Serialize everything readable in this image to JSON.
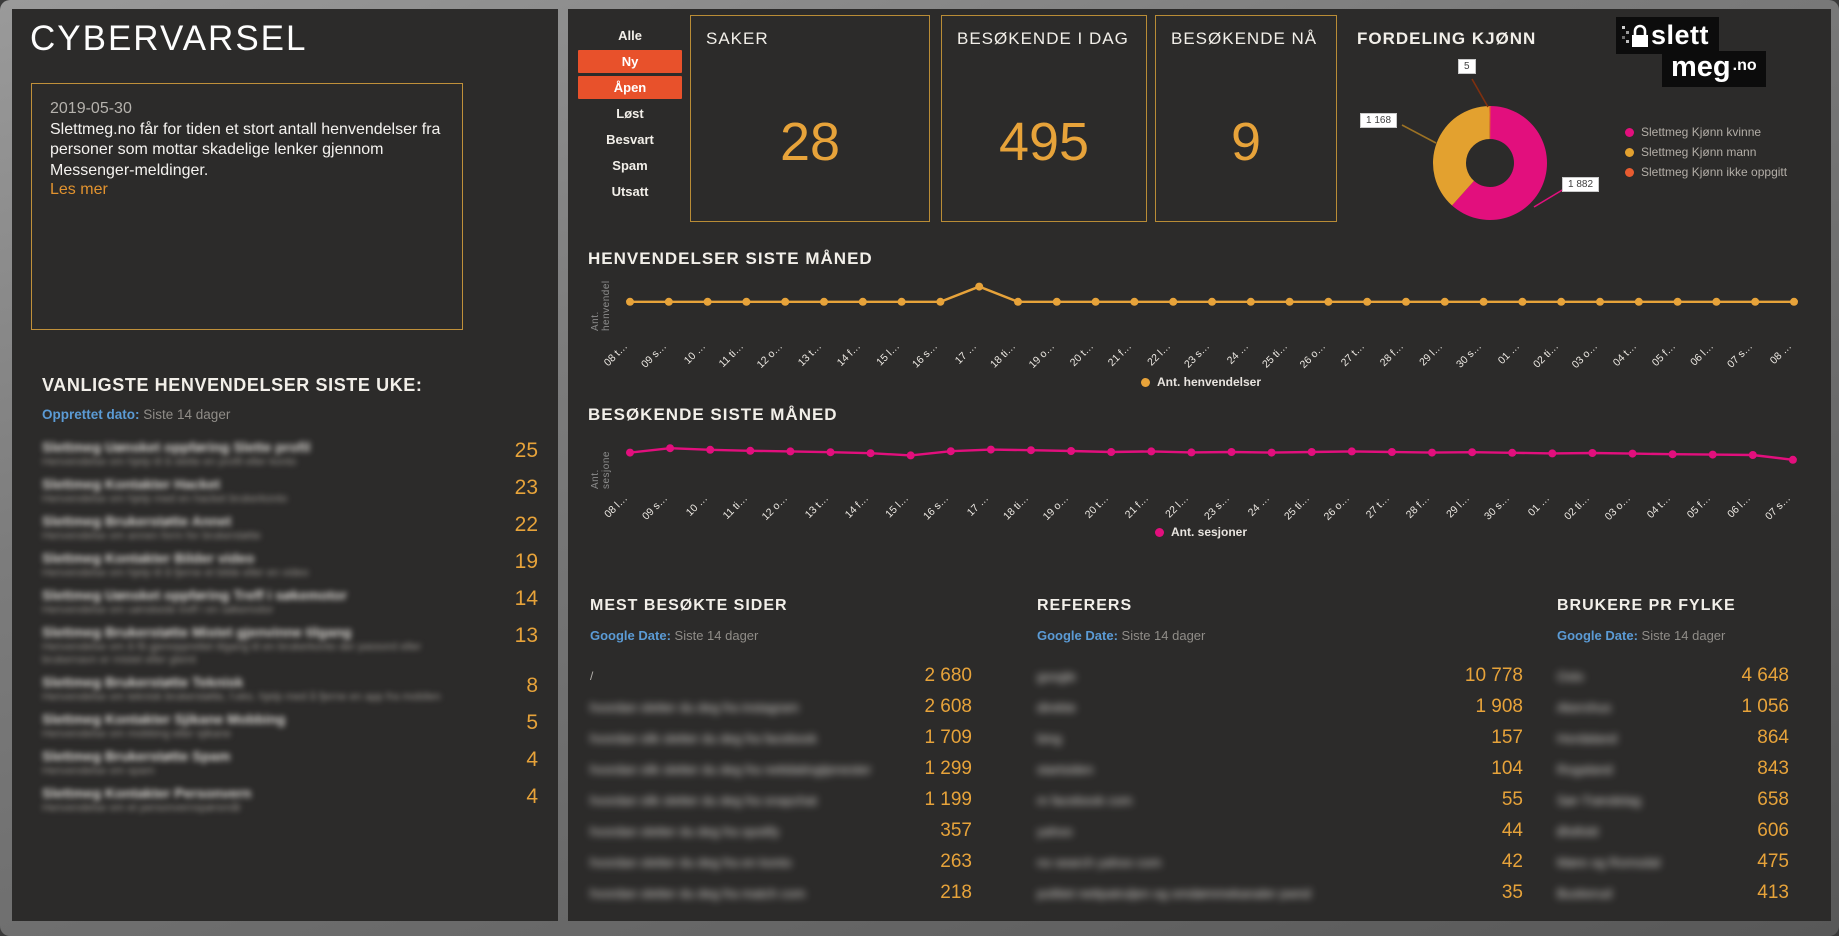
{
  "app": {
    "title": "CYBERVARSEL"
  },
  "alert": {
    "date": "2019-05-30",
    "text": "Slettmeg.no får for tiden et stort antall henvendelser fra personer som mottar skadelige lenker gjennom Messenger-meldinger.",
    "link_label": "Les mer"
  },
  "common_requests": {
    "heading": "VANLIGSTE HENVENDELSER SISTE UKE:",
    "filter_label": "Opprettet dato:",
    "filter_value": "Siste 14 dager",
    "note": "item titles and descriptions are blurred/redacted in the source image",
    "items": [
      {
        "title": "Slettmeg Uønsket oppføring Slette profil",
        "desc": "Henvendelse om hjelp til å slette en profil eller konto",
        "count": "25",
        "blurred": true
      },
      {
        "title": "Slettmeg Kontakter Hacket",
        "desc": "Henvendelse om hjelp med en hacket brukerkonto",
        "count": "23",
        "blurred": true
      },
      {
        "title": "Slettmeg Brukerstøtte Annet",
        "desc": "Henvendelse om annen form for brukerstøtte",
        "count": "22",
        "blurred": true
      },
      {
        "title": "Slettmeg Kontakter Bilder video",
        "desc": "Henvendelse om hjelp til å fjerne et bilde eller en video",
        "count": "19",
        "blurred": true
      },
      {
        "title": "Slettmeg Uønsket oppføring Treff i søkemotor",
        "desc": "Henvendelse om uønskede treff i en søkemotor",
        "count": "14",
        "blurred": true
      },
      {
        "title": "Slettmeg Brukerstøtte Mistet gjenvinne tilgang",
        "desc": "Henvendelse om å få gjenopprettet tilgang til en brukerkonto der passord eller brukernavn er mistet eller glemt",
        "count": "13",
        "blurred": true
      },
      {
        "title": "Slettmeg Brukerstøtte Teknisk",
        "desc": "Henvendelse om teknisk brukerstøtte, f.eks. hjelp med å fjerne en app fra mobilen",
        "count": "8",
        "blurred": true
      },
      {
        "title": "Slettmeg Kontakter Sjikane Mobbing",
        "desc": "Henvendelse om mobbing eller sjikane",
        "count": "5",
        "blurred": true
      },
      {
        "title": "Slettmeg Brukerstøtte Spam",
        "desc": "Henvendelse om spam",
        "count": "4",
        "blurred": true
      },
      {
        "title": "Slettmeg Kontakter Personvern",
        "desc": "Henvendelse om et personvernspørsmål",
        "count": "4",
        "blurred": true
      }
    ]
  },
  "filters": {
    "items": [
      {
        "label": "Alle",
        "active": false
      },
      {
        "label": "Ny",
        "active": true
      },
      {
        "label": "Åpen",
        "active": true
      },
      {
        "label": "Løst",
        "active": false
      },
      {
        "label": "Besvart",
        "active": false
      },
      {
        "label": "Spam",
        "active": false
      },
      {
        "label": "Utsatt",
        "active": false
      }
    ],
    "active_color": "#e8512b"
  },
  "kpis": [
    {
      "title": "SAKER",
      "value": "28"
    },
    {
      "title": "BESØKENDE I DAG",
      "value": "495"
    },
    {
      "title": "BESØKENDE NÅ",
      "value": "9"
    }
  ],
  "gender_chart": {
    "title": "FORDELING KJØNN",
    "segments": [
      {
        "label": "Slettmeg Kjønn kvinne",
        "value": 1882,
        "display": "1 882",
        "color": "#e20f7d"
      },
      {
        "label": "Slettmeg Kjønn mann",
        "value": 1168,
        "display": "1 168",
        "color": "#e3a12f"
      },
      {
        "label": "Slettmeg Kjønn ikke oppgitt",
        "value": 5,
        "display": "5",
        "color": "#e85b30"
      }
    ]
  },
  "logo": {
    "line1": "slett",
    "line2": "meg",
    "tld": ".no"
  },
  "chart_data": [
    {
      "id": "henvendelser",
      "type": "line",
      "title": "HENVENDELSER SISTE MÅNED",
      "ylabel": "Ant. henvendel",
      "legend": "Ant. henvendelser",
      "color": "#e7a33a",
      "grid": false,
      "legend_position": "bottom-center",
      "ylim": [
        0,
        5
      ],
      "x": [
        "08 t…",
        "09 s…",
        "10 …",
        "11 ti…",
        "12 o…",
        "13 t…",
        "14 f…",
        "15 l…",
        "16 s…",
        "17 …",
        "18 ti…",
        "19 o…",
        "20 t…",
        "21 f…",
        "22 l…",
        "23 s…",
        "24 …",
        "25 ti…",
        "26 o…",
        "27 t…",
        "28 f…",
        "29 l…",
        "30 s…",
        "01 …",
        "02 ti…",
        "03 o…",
        "04 t…",
        "05 f…",
        "06 l…",
        "07 s…",
        "08 …"
      ],
      "values": [
        2,
        2,
        2,
        2,
        2,
        2,
        2,
        2,
        2,
        4,
        2,
        2,
        2,
        2,
        2,
        2,
        2,
        2,
        2,
        2,
        2,
        2,
        2,
        2,
        2,
        2,
        2,
        2,
        2,
        2,
        2
      ]
    },
    {
      "id": "besokende",
      "type": "line",
      "title": "BESØKENDE SISTE MÅNED",
      "ylabel": "Ant. sesjone",
      "legend": "Ant. sesjoner",
      "color": "#e20f7d",
      "grid": false,
      "legend_position": "bottom-center",
      "ylim": [
        400,
        560
      ],
      "x": [
        "08 l…",
        "09 s…",
        "10 …",
        "11 ti…",
        "12 o…",
        "13 t…",
        "14 f…",
        "15 l…",
        "16 s…",
        "17 …",
        "18 ti…",
        "19 o…",
        "20 t…",
        "21 f…",
        "22 l…",
        "23 s…",
        "24 …",
        "25 ti…",
        "26 o…",
        "27 t…",
        "28 f…",
        "29 l…",
        "30 s…",
        "01 …",
        "02 ti…",
        "03 o…",
        "04 t…",
        "05 f…",
        "06 l…",
        "07 s…"
      ],
      "values": [
        482,
        504,
        496,
        491,
        488,
        484,
        479,
        468,
        489,
        497,
        494,
        490,
        485,
        488,
        483,
        485,
        482,
        485,
        488,
        485,
        482,
        484,
        481,
        478,
        480,
        477,
        474,
        472,
        470,
        446
      ]
    },
    {
      "id": "kjonn",
      "type": "pie",
      "title": "FORDELING KJØNN",
      "labels": [
        "Slettmeg Kjønn kvinne",
        "Slettmeg Kjønn mann",
        "Slettmeg Kjønn ikke oppgitt"
      ],
      "values": [
        1882,
        1168,
        5
      ],
      "data_labels": [
        "1 882",
        "1 168",
        "5"
      ],
      "legend_position": "right"
    }
  ],
  "tables": [
    {
      "heading": "MEST BESØKTE SIDER",
      "filter_label": "Google Date:",
      "filter_value": "Siste 14 dager",
      "rows": [
        {
          "label": "/",
          "value": "2 680",
          "blurred": false
        },
        {
          "label": "hvordan sletter du deg fra instagram",
          "value": "2 608",
          "blurred": true
        },
        {
          "label": "hvordan slik sletter du deg fra facebook",
          "value": "1 709",
          "blurred": true
        },
        {
          "label": "hvordan slik sletter du deg fra nettdatingtjenester",
          "value": "1 299",
          "blurred": true
        },
        {
          "label": "hvordan slik sletter du deg fra snapchat",
          "value": "1 199",
          "blurred": true
        },
        {
          "label": "hvordan sletter du deg fra spotify",
          "value": "357",
          "blurred": true
        },
        {
          "label": "hvordan sletter du deg fra en konto",
          "value": "263",
          "blurred": true
        },
        {
          "label": "hvordan sletter du deg fra match com",
          "value": "218",
          "blurred": true
        }
      ]
    },
    {
      "heading": "REFERERS",
      "filter_label": "Google Date:",
      "filter_value": "Siste 14 dager",
      "rows": [
        {
          "label": "google",
          "value": "10 778",
          "blurred": true
        },
        {
          "label": "direkte",
          "value": "1 908",
          "blurred": true
        },
        {
          "label": "bing",
          "value": "157",
          "blurred": true
        },
        {
          "label": "startsiden",
          "value": "104",
          "blurred": true
        },
        {
          "label": "m facebook com",
          "value": "55",
          "blurred": true
        },
        {
          "label": "yahoo",
          "value": "44",
          "blurred": true
        },
        {
          "label": "no search yahoo com",
          "value": "42",
          "blurred": true
        },
        {
          "label": "politiet nettpatruljen og omdømmekanaler pwnd",
          "value": "35",
          "blurred": true
        }
      ]
    },
    {
      "heading": "BRUKERE PR FYLKE",
      "filter_label": "Google Date:",
      "filter_value": "Siste 14 dager",
      "rows": [
        {
          "label": "Oslo",
          "value": "4 648",
          "blurred": true
        },
        {
          "label": "Akershus",
          "value": "1 056",
          "blurred": true
        },
        {
          "label": "Hordaland",
          "value": "864",
          "blurred": true
        },
        {
          "label": "Rogaland",
          "value": "843",
          "blurred": true
        },
        {
          "label": "Sør-Trøndelag",
          "value": "658",
          "blurred": true
        },
        {
          "label": "Østfold",
          "value": "606",
          "blurred": true
        },
        {
          "label": "Møre og Romsdal",
          "value": "475",
          "blurred": true
        },
        {
          "label": "Buskerud",
          "value": "413",
          "blurred": true
        }
      ]
    }
  ]
}
